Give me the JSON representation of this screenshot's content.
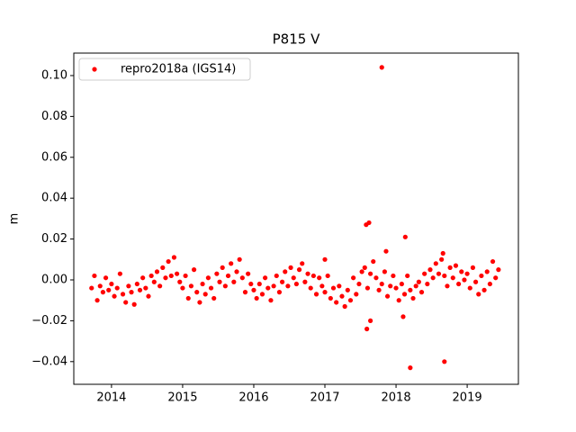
{
  "chart_data": {
    "type": "scatter",
    "title": "P815 V",
    "y_label": "m",
    "legend_loc": "upper left",
    "x": [
      2013.72,
      2013.76,
      2013.8,
      2013.84,
      2013.88,
      2013.92,
      2013.96,
      2014.0,
      2014.04,
      2014.08,
      2014.12,
      2014.16,
      2014.2,
      2014.24,
      2014.28,
      2014.32,
      2014.36,
      2014.4,
      2014.44,
      2014.48,
      2014.52,
      2014.56,
      2014.6,
      2014.64,
      2014.68,
      2014.72,
      2014.76,
      2014.8,
      2014.84,
      2014.88,
      2014.92,
      2014.96,
      2015.0,
      2015.04,
      2015.08,
      2015.12,
      2015.16,
      2015.2,
      2015.24,
      2015.28,
      2015.32,
      2015.36,
      2015.4,
      2015.44,
      2015.48,
      2015.52,
      2015.56,
      2015.6,
      2015.64,
      2015.68,
      2015.72,
      2015.76,
      2015.8,
      2015.84,
      2015.88,
      2015.92,
      2015.96,
      2016.0,
      2016.04,
      2016.08,
      2016.12,
      2016.16,
      2016.2,
      2016.24,
      2016.28,
      2016.32,
      2016.36,
      2016.4,
      2016.44,
      2016.48,
      2016.52,
      2016.56,
      2016.6,
      2016.64,
      2016.68,
      2016.72,
      2016.76,
      2016.8,
      2016.84,
      2016.88,
      2016.92,
      2016.96,
      2017.0,
      2017.04,
      2017.08,
      2017.12,
      2017.16,
      2017.2,
      2017.24,
      2017.28,
      2017.32,
      2017.36,
      2017.4,
      2017.44,
      2017.48,
      2017.52,
      2017.56,
      2017.6,
      2017.64,
      2017.68,
      2017.72,
      2017.76,
      2017.8,
      2017.84,
      2017.88,
      2017.92,
      2017.96,
      2018.0,
      2018.04,
      2018.08,
      2018.12,
      2018.16,
      2018.2,
      2018.24,
      2018.28,
      2018.32,
      2018.36,
      2018.4,
      2018.44,
      2018.48,
      2018.52,
      2018.56,
      2018.6,
      2018.64,
      2018.68,
      2018.72,
      2018.76,
      2018.8,
      2018.84,
      2018.88,
      2018.92,
      2018.96,
      2019.0,
      2019.04,
      2019.08,
      2019.12,
      2019.16,
      2019.2,
      2019.24,
      2019.28,
      2019.32,
      2019.36,
      2019.4,
      2019.44,
      2017.8,
      2017.58,
      2017.62,
      2017.59,
      2017.64,
      2018.13,
      2018.1,
      2018.2,
      2018.68,
      2017.86,
      2017.0,
      2018.66
    ],
    "series": [
      {
        "name": "repro2018a (IGS14)",
        "color": "#ff0000",
        "values": [
          -0.004,
          0.002,
          -0.01,
          -0.003,
          -0.006,
          0.001,
          -0.005,
          -0.002,
          -0.008,
          -0.004,
          0.003,
          -0.007,
          -0.011,
          -0.003,
          -0.006,
          -0.012,
          -0.002,
          -0.005,
          0.001,
          -0.004,
          -0.008,
          0.002,
          -0.001,
          0.004,
          -0.003,
          0.006,
          0.001,
          0.009,
          0.002,
          0.011,
          0.003,
          -0.001,
          -0.004,
          0.002,
          -0.009,
          -0.003,
          0.005,
          -0.006,
          -0.011,
          -0.002,
          -0.007,
          0.001,
          -0.004,
          -0.009,
          0.003,
          -0.001,
          0.006,
          -0.003,
          0.002,
          0.008,
          -0.001,
          0.004,
          0.01,
          0.001,
          -0.006,
          0.003,
          -0.002,
          -0.005,
          -0.009,
          -0.002,
          -0.007,
          0.001,
          -0.004,
          -0.01,
          -0.003,
          0.002,
          -0.006,
          -0.001,
          0.004,
          -0.003,
          0.006,
          0.001,
          -0.002,
          0.005,
          0.008,
          -0.001,
          0.003,
          -0.004,
          0.002,
          -0.007,
          0.001,
          -0.003,
          -0.006,
          0.002,
          -0.009,
          -0.004,
          -0.011,
          -0.003,
          -0.008,
          -0.013,
          -0.005,
          -0.01,
          0.001,
          -0.007,
          -0.002,
          0.004,
          0.006,
          -0.004,
          0.003,
          0.009,
          0.001,
          -0.005,
          -0.002,
          0.004,
          -0.008,
          -0.003,
          0.002,
          -0.004,
          -0.01,
          -0.002,
          -0.007,
          0.002,
          -0.005,
          -0.009,
          -0.003,
          -0.001,
          -0.006,
          0.003,
          -0.002,
          0.005,
          0.001,
          0.008,
          0.003,
          0.01,
          0.002,
          -0.003,
          0.006,
          0.001,
          0.007,
          -0.002,
          0.004,
          0.0,
          0.003,
          -0.004,
          0.006,
          -0.001,
          -0.007,
          0.002,
          -0.005,
          0.004,
          -0.002,
          0.009,
          0.001,
          0.005,
          0.104,
          0.027,
          0.028,
          -0.024,
          -0.02,
          0.021,
          -0.018,
          -0.043,
          -0.04,
          0.014,
          0.01,
          0.013
        ]
      }
    ],
    "xlim": [
      2013.47,
      2019.72
    ],
    "xticks": [
      2014,
      2015,
      2016,
      2017,
      2018,
      2019
    ],
    "ylim": [
      -0.0511,
      0.111
    ],
    "yticks": [
      {
        "value": -0.04,
        "label": "−0.04"
      },
      {
        "value": -0.02,
        "label": "−0.02"
      },
      {
        "value": 0,
        "label": "0.00"
      },
      {
        "value": 0.02,
        "label": "0.02"
      },
      {
        "value": 0.04,
        "label": "0.04"
      },
      {
        "value": 0.06,
        "label": "0.06"
      },
      {
        "value": 0.08,
        "label": "0.08"
      },
      {
        "value": 0.1,
        "label": "0.10"
      }
    ]
  }
}
